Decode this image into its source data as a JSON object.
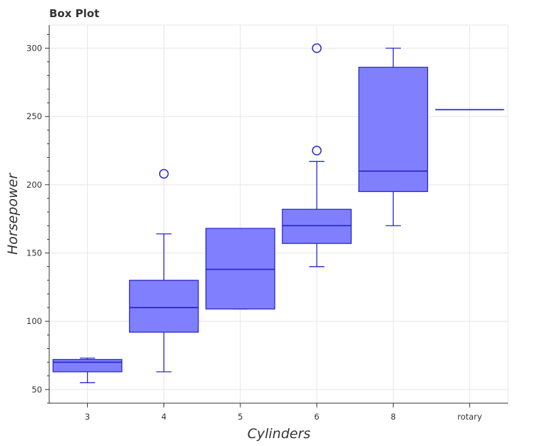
{
  "chart_data": {
    "type": "box",
    "title": "Box Plot",
    "xlabel": "Cylinders",
    "ylabel": "Horsepower",
    "categories": [
      "3",
      "4",
      "5",
      "6",
      "8",
      "rotary"
    ],
    "boxes": [
      {
        "category": "3",
        "whisker_low": 55,
        "q1": 63,
        "median": 70,
        "q3": 72,
        "whisker_high": 73,
        "outliers": []
      },
      {
        "category": "4",
        "whisker_low": 63,
        "q1": 92,
        "median": 110,
        "q3": 130,
        "whisker_high": 164,
        "outliers": [
          208
        ]
      },
      {
        "category": "5",
        "whisker_low": 109,
        "q1": 109,
        "median": 138,
        "q3": 168,
        "whisker_high": 168,
        "outliers": []
      },
      {
        "category": "6",
        "whisker_low": 140,
        "q1": 157,
        "median": 170,
        "q3": 182,
        "whisker_high": 217,
        "outliers": [
          225,
          300
        ]
      },
      {
        "category": "8",
        "whisker_low": 170,
        "q1": 195,
        "median": 210,
        "q3": 286,
        "whisker_high": 300,
        "outliers": []
      },
      {
        "category": "rotary",
        "whisker_low": 255,
        "q1": 255,
        "median": 255,
        "q3": 255,
        "whisker_high": 255,
        "outliers": []
      }
    ],
    "yticks": [
      50,
      100,
      150,
      200,
      250,
      300
    ],
    "ylim": [
      40,
      317
    ],
    "grid": true,
    "colors": {
      "box_fill": "#8080ff",
      "box_stroke": "#2a2acd",
      "grid": "#e6e6e6",
      "axis": "#333333"
    }
  }
}
